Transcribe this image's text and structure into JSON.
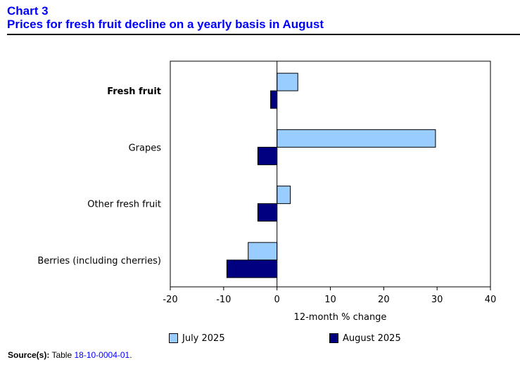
{
  "header": {
    "chart_number": "Chart 3",
    "title": "Prices for fresh fruit decline on a yearly basis in August"
  },
  "source": {
    "label": "Source(s):",
    "text_before": " Table ",
    "link_text": "18-10-0004-01",
    "text_after": "."
  },
  "colors": {
    "july": "#99ccff",
    "august": "#000080",
    "title": "#0000ff"
  },
  "chart_data": {
    "type": "bar",
    "orientation": "horizontal",
    "categories": [
      "Fresh fruit",
      "Grapes",
      "Other fresh fruit",
      "Berries (including cherries)"
    ],
    "bold_categories": [
      "Fresh fruit"
    ],
    "series": [
      {
        "name": "July 2025",
        "values": [
          3.9,
          29.7,
          2.5,
          -5.4
        ]
      },
      {
        "name": "August 2025",
        "values": [
          -1.2,
          -3.6,
          -3.6,
          -9.4
        ]
      }
    ],
    "xlim": [
      -20,
      40
    ],
    "xticks": [
      -20,
      -10,
      0,
      10,
      20,
      30,
      40
    ],
    "xlabel": "12-month % change",
    "legend_position": "bottom",
    "grid": false
  }
}
